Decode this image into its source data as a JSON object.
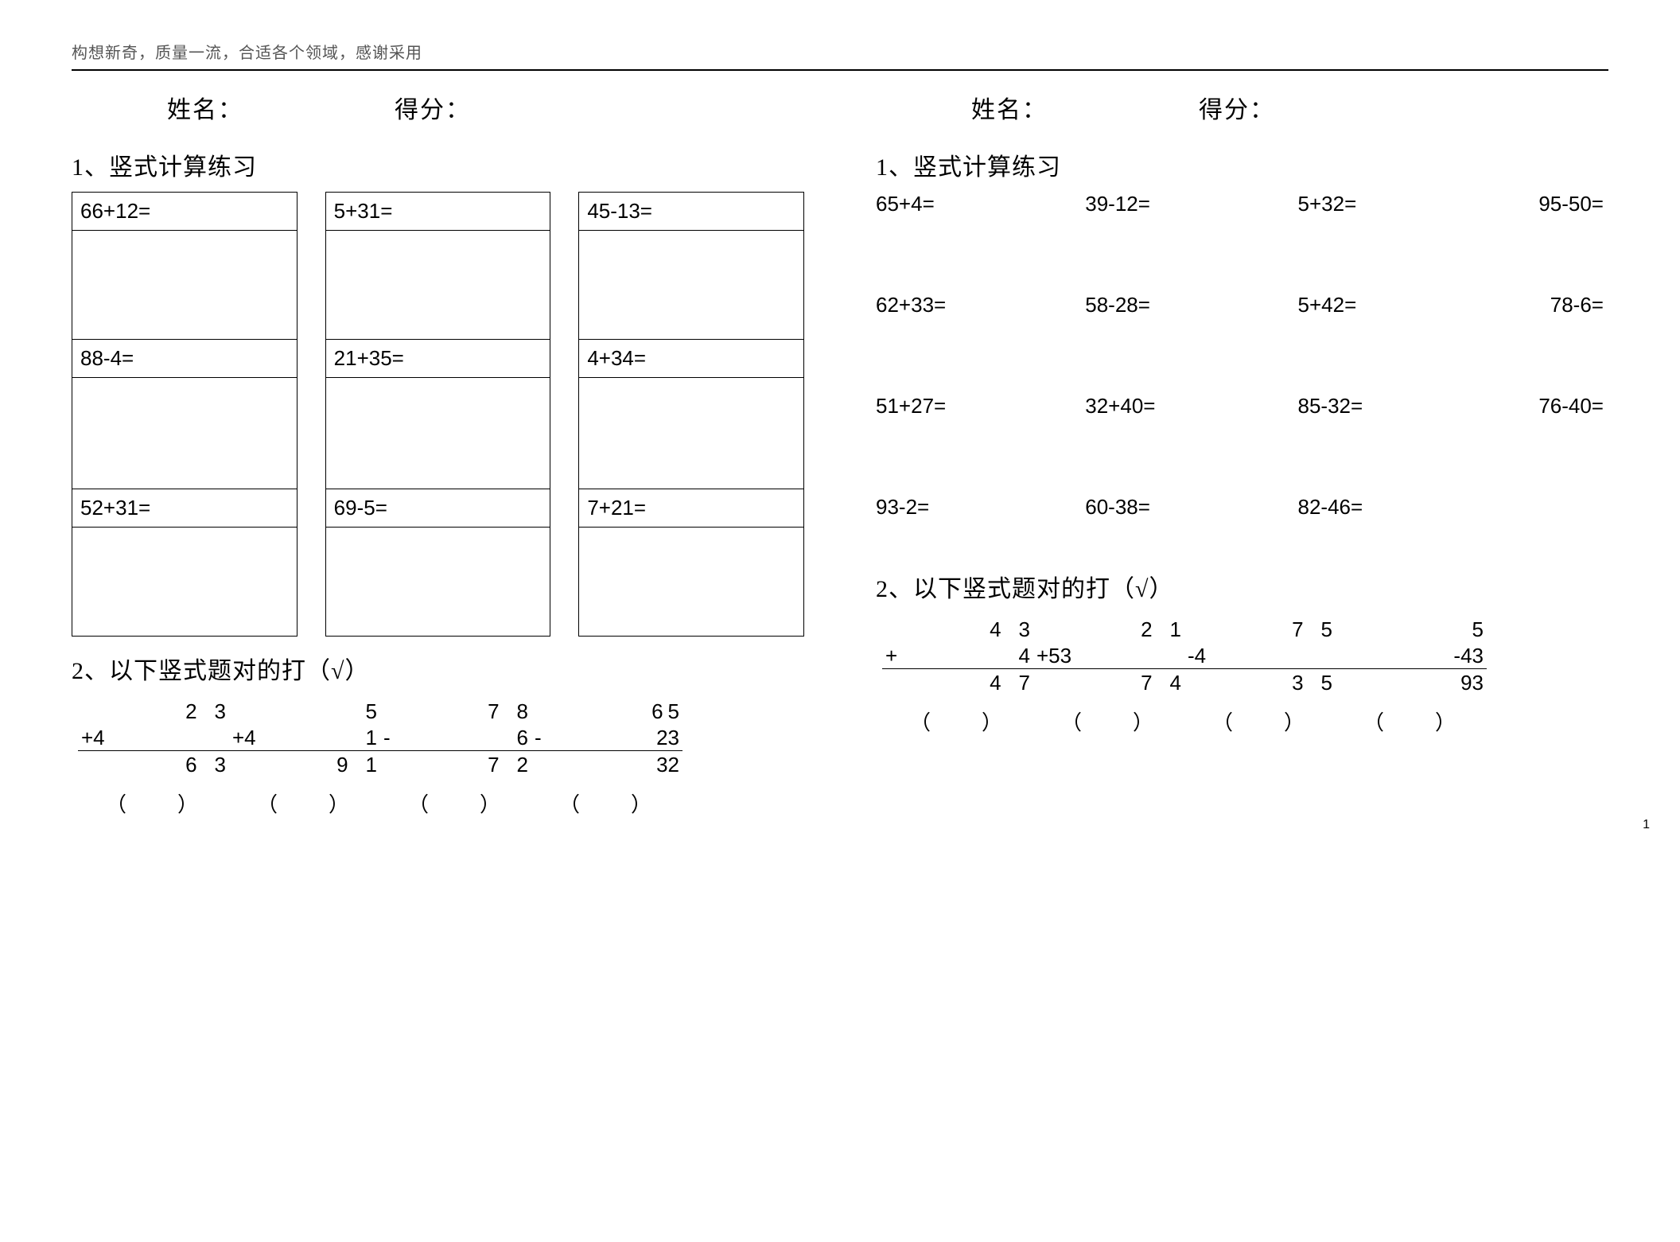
{
  "header_text": "构想新奇，质量一流，合适各个领域，感谢采用",
  "labels": {
    "name": "姓名：",
    "score": "得分：",
    "section1": "1、竖式计算练习",
    "section2_left": "2、以下竖式题对的打（√）",
    "section2_right": "2、以下竖式题对的打（√）",
    "paren": "（　　）"
  },
  "left": {
    "table": [
      [
        "66+12=",
        "5+31=",
        "45-13="
      ],
      [
        "88-4=",
        "21+35=",
        "4+34="
      ],
      [
        "52+31=",
        "69-5=",
        "7+21="
      ]
    ],
    "vstacks": [
      {
        "top": [
          "2",
          "3"
        ],
        "op": "+4",
        "op_right": [
          ""
        ],
        "sol": [
          "6",
          "3"
        ]
      },
      {
        "top": [
          "5"
        ],
        "op": "+4",
        "op_right": [
          "1"
        ],
        "sol": [
          "9",
          "1"
        ]
      },
      {
        "top": [
          "7",
          "8"
        ],
        "op": "-",
        "op_right": [
          "6"
        ],
        "sol": [
          "7",
          "2"
        ]
      },
      {
        "top": [
          "6",
          "5"
        ],
        "op": "-",
        "op_right": [
          "23"
        ],
        "sol": [
          "32"
        ],
        "tight": true
      }
    ]
  },
  "right": {
    "grid": [
      [
        "65+4=",
        "39-12=",
        "5+32=",
        "95-50="
      ],
      [
        "62+33=",
        "58-28=",
        "5+42=",
        "78-6="
      ],
      [
        "51+27=",
        "32+40=",
        "85-32=",
        "76-40="
      ],
      [
        "93-2=",
        "60-38=",
        "82-46=",
        ""
      ]
    ],
    "vstacks": [
      {
        "top": [
          "4",
          "3"
        ],
        "op": "+",
        "op_right": [
          "4"
        ],
        "sol": [
          "4",
          "7"
        ]
      },
      {
        "top": [
          "2",
          "1"
        ],
        "op": "+53",
        "op_right": [
          ""
        ],
        "sol": [
          "7",
          "4"
        ]
      },
      {
        "top": [
          "7",
          "5"
        ],
        "op": "-4",
        "op_right": [
          ""
        ],
        "sol": [
          "3",
          "5"
        ]
      },
      {
        "top": [
          "5"
        ],
        "op": "",
        "op_right": [
          "-43"
        ],
        "sol": [
          "93"
        ],
        "tight": true
      }
    ]
  },
  "page_number": "1"
}
